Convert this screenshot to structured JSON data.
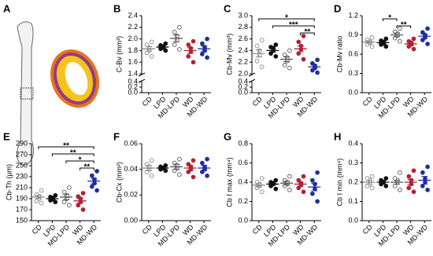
{
  "panel_a": {
    "label": "A"
  },
  "chart_data": [
    {
      "type": "dot",
      "panel": "B",
      "ylabel": "C-Bv (mm³)",
      "ylim": [
        1.4,
        2.4
      ],
      "yticks": [
        1.4,
        1.6,
        1.8,
        {
          "value": 2,
          "label": "2.0"
        },
        2.2,
        2.4
      ],
      "ylim_low": [
        0,
        0.4
      ],
      "yticks_low": [
        {
          "value": 0,
          "label": "0.0"
        },
        0.2,
        0.4
      ],
      "series": [
        {
          "name": "CD",
          "color": "#888888",
          "filled": false,
          "values": [
            1.7,
            1.76,
            1.8,
            1.85,
            1.9,
            1.95
          ],
          "mean": 1.83,
          "sem": 0.04
        },
        {
          "name": "LPD",
          "color": "#111111",
          "filled": true,
          "values": [
            1.8,
            1.83,
            1.85,
            1.87,
            1.89,
            1.92
          ],
          "mean": 1.86,
          "sem": 0.02
        },
        {
          "name": "MD-LPD",
          "color": "#555555",
          "filled": false,
          "values": [
            1.82,
            1.9,
            1.98,
            2.05,
            2.12,
            2.2
          ],
          "mean": 2.01,
          "sem": 0.06
        },
        {
          "name": "WD",
          "color": "#b22234",
          "filled": true,
          "values": [
            1.6,
            1.7,
            1.78,
            1.84,
            1.9,
            1.96
          ],
          "mean": 1.8,
          "sem": 0.05
        },
        {
          "name": "MD-WD",
          "color": "#1f2f9e",
          "filled": true,
          "values": [
            1.68,
            1.74,
            1.8,
            1.86,
            1.92,
            2.0
          ],
          "mean": 1.83,
          "sem": 0.05
        }
      ],
      "brackets": []
    },
    {
      "type": "dot",
      "panel": "C",
      "ylabel": "Cb-Mv (mm³)",
      "ylim": [
        2.0,
        3.0
      ],
      "yticks": [
        {
          "value": 2,
          "label": "2.0"
        },
        2.2,
        2.4,
        2.6,
        2.8,
        {
          "value": 3,
          "label": "3.0"
        }
      ],
      "ylim_low": [
        0,
        0.4
      ],
      "yticks_low": [
        {
          "value": 0,
          "label": "0.0"
        },
        0.2,
        0.4
      ],
      "series": [
        {
          "name": "CD",
          "color": "#888888",
          "filled": false,
          "values": [
            2.12,
            2.22,
            2.32,
            2.4,
            2.48,
            2.58
          ],
          "mean": 2.35,
          "sem": 0.06
        },
        {
          "name": "LPD",
          "color": "#111111",
          "filled": true,
          "values": [
            2.3,
            2.35,
            2.4,
            2.44,
            2.46,
            2.5
          ],
          "mean": 2.4,
          "sem": 0.03
        },
        {
          "name": "MD-LPD",
          "color": "#555555",
          "filled": false,
          "values": [
            2.1,
            2.15,
            2.22,
            2.28,
            2.33,
            2.4
          ],
          "mean": 2.25,
          "sem": 0.04
        },
        {
          "name": "WD",
          "color": "#b22234",
          "filled": true,
          "values": [
            2.25,
            2.35,
            2.42,
            2.48,
            2.55,
            2.65
          ],
          "mean": 2.43,
          "sem": 0.05
        },
        {
          "name": "MD-WD",
          "color": "#1f2f9e",
          "filled": true,
          "values": [
            2.02,
            2.06,
            2.1,
            2.14,
            2.18,
            2.24
          ],
          "mean": 2.12,
          "sem": 0.03
        }
      ],
      "brackets": [
        {
          "label": "*",
          "from": "CD",
          "to": "MD-WD"
        },
        {
          "label": "***",
          "from": "LPD",
          "to": "MD-WD"
        },
        {
          "label": "**",
          "from": "WD",
          "to": "MD-WD"
        }
      ]
    },
    {
      "type": "dot",
      "panel": "D",
      "ylabel": "Cb-Mv ratio",
      "ylim": [
        0,
        1.2
      ],
      "yticks": [
        {
          "value": 0,
          "label": "0.0"
        },
        0.3,
        0.6,
        0.9,
        1.2
      ],
      "series": [
        {
          "name": "CD",
          "color": "#888888",
          "filled": false,
          "values": [
            0.72,
            0.75,
            0.78,
            0.8,
            0.83,
            0.86
          ],
          "mean": 0.79,
          "sem": 0.02
        },
        {
          "name": "LPD",
          "color": "#111111",
          "filled": true,
          "values": [
            0.72,
            0.75,
            0.77,
            0.79,
            0.81,
            0.84
          ],
          "mean": 0.78,
          "sem": 0.02
        },
        {
          "name": "MD-LPD",
          "color": "#555555",
          "filled": false,
          "values": [
            0.8,
            0.85,
            0.89,
            0.92,
            0.95,
            1.0
          ],
          "mean": 0.9,
          "sem": 0.03
        },
        {
          "name": "WD",
          "color": "#b22234",
          "filled": true,
          "values": [
            0.68,
            0.72,
            0.75,
            0.78,
            0.8,
            0.84
          ],
          "mean": 0.76,
          "sem": 0.02
        },
        {
          "name": "MD-WD",
          "color": "#1f2f9e",
          "filled": true,
          "values": [
            0.76,
            0.82,
            0.86,
            0.9,
            0.94,
            1.0
          ],
          "mean": 0.88,
          "sem": 0.03
        }
      ],
      "brackets": [
        {
          "label": "*",
          "from": "LPD",
          "to": "MD-LPD"
        },
        {
          "label": "**",
          "from": "MD-LPD",
          "to": "WD"
        }
      ]
    },
    {
      "type": "dot",
      "panel": "E",
      "ylabel": "Cb-Th (μm)",
      "ylim": [
        150,
        290
      ],
      "yticks": [
        150,
        170,
        190,
        210,
        230,
        250,
        270,
        290
      ],
      "series": [
        {
          "name": "CD",
          "color": "#888888",
          "filled": false,
          "values": [
            182,
            186,
            190,
            195,
            198,
            205
          ],
          "mean": 193,
          "sem": 3
        },
        {
          "name": "LPD",
          "color": "#111111",
          "filled": true,
          "values": [
            184,
            187,
            189,
            191,
            193,
            196
          ],
          "mean": 190,
          "sem": 2
        },
        {
          "name": "MD-LPD",
          "color": "#555555",
          "filled": false,
          "values": [
            178,
            184,
            190,
            196,
            202,
            210
          ],
          "mean": 193,
          "sem": 5
        },
        {
          "name": "WD",
          "color": "#b22234",
          "filled": true,
          "values": [
            170,
            178,
            184,
            190,
            194,
            200
          ],
          "mean": 186,
          "sem": 4
        },
        {
          "name": "MD-WD",
          "color": "#1f2f9e",
          "filled": true,
          "values": [
            205,
            212,
            218,
            225,
            232,
            240
          ],
          "mean": 222,
          "sem": 5
        }
      ],
      "brackets": [
        {
          "label": "**",
          "from": "CD",
          "to": "MD-WD"
        },
        {
          "label": "**",
          "from": "LPD",
          "to": "MD-WD"
        },
        {
          "label": "*",
          "from": "MD-LPD",
          "to": "MD-WD"
        },
        {
          "label": "**",
          "from": "WD",
          "to": "MD-WD"
        }
      ]
    },
    {
      "type": "dot",
      "panel": "F",
      "ylabel": "Cb-Cx (mm²)",
      "ylim": [
        0,
        0.06
      ],
      "yticks": [
        {
          "value": 0,
          "label": "0.00"
        },
        0.02,
        0.04,
        0.06
      ],
      "series": [
        {
          "name": "CD",
          "color": "#888888",
          "filled": false,
          "values": [
            0.035,
            0.038,
            0.04,
            0.042,
            0.044,
            0.047
          ],
          "mean": 0.041,
          "sem": 0.002
        },
        {
          "name": "LPD",
          "color": "#111111",
          "filled": true,
          "values": [
            0.039,
            0.04,
            0.041,
            0.041,
            0.042,
            0.043
          ],
          "mean": 0.041,
          "sem": 0.001
        },
        {
          "name": "MD-LPD",
          "color": "#555555",
          "filled": false,
          "values": [
            0.036,
            0.039,
            0.041,
            0.043,
            0.045,
            0.048
          ],
          "mean": 0.042,
          "sem": 0.002
        },
        {
          "name": "WD",
          "color": "#b22234",
          "filled": true,
          "values": [
            0.034,
            0.038,
            0.04,
            0.042,
            0.044,
            0.047
          ],
          "mean": 0.041,
          "sem": 0.002
        },
        {
          "name": "MD-WD",
          "color": "#1f2f9e",
          "filled": true,
          "values": [
            0.035,
            0.038,
            0.04,
            0.042,
            0.045,
            0.048
          ],
          "mean": 0.041,
          "sem": 0.002
        }
      ],
      "brackets": []
    },
    {
      "type": "dot",
      "panel": "G",
      "ylabel": "Cb I max (mm⁴)",
      "ylim": [
        0,
        0.8
      ],
      "yticks": [
        {
          "value": 0,
          "label": "0.0"
        },
        0.2,
        0.4,
        0.6,
        0.8
      ],
      "series": [
        {
          "name": "CD",
          "color": "#888888",
          "filled": false,
          "values": [
            0.3,
            0.34,
            0.36,
            0.38,
            0.4,
            0.44
          ],
          "mean": 0.37,
          "sem": 0.02
        },
        {
          "name": "LPD",
          "color": "#111111",
          "filled": true,
          "values": [
            0.33,
            0.36,
            0.38,
            0.39,
            0.4,
            0.42
          ],
          "mean": 0.38,
          "sem": 0.01
        },
        {
          "name": "MD-LPD",
          "color": "#555555",
          "filled": false,
          "values": [
            0.32,
            0.36,
            0.38,
            0.4,
            0.42,
            0.46
          ],
          "mean": 0.39,
          "sem": 0.02
        },
        {
          "name": "WD",
          "color": "#b22234",
          "filled": true,
          "values": [
            0.3,
            0.34,
            0.37,
            0.39,
            0.42,
            0.46
          ],
          "mean": 0.38,
          "sem": 0.02
        },
        {
          "name": "MD-WD",
          "color": "#1f2f9e",
          "filled": true,
          "values": [
            0.2,
            0.28,
            0.33,
            0.38,
            0.42,
            0.5
          ],
          "mean": 0.35,
          "sem": 0.04
        }
      ],
      "brackets": []
    },
    {
      "type": "dot",
      "panel": "H",
      "ylabel": "Cb I min (mm⁴)",
      "ylim": [
        0,
        0.4
      ],
      "yticks": [
        {
          "value": 0,
          "label": "0.0"
        },
        0.1,
        0.2,
        0.3,
        0.4
      ],
      "series": [
        {
          "name": "CD",
          "color": "#888888",
          "filled": false,
          "values": [
            0.17,
            0.18,
            0.19,
            0.21,
            0.22,
            0.23
          ],
          "mean": 0.2,
          "sem": 0.01
        },
        {
          "name": "LPD",
          "color": "#111111",
          "filled": true,
          "values": [
            0.18,
            0.19,
            0.2,
            0.2,
            0.21,
            0.22
          ],
          "mean": 0.2,
          "sem": 0.01
        },
        {
          "name": "MD-LPD",
          "color": "#555555",
          "filled": false,
          "values": [
            0.16,
            0.18,
            0.2,
            0.21,
            0.22,
            0.25
          ],
          "mean": 0.2,
          "sem": 0.01
        },
        {
          "name": "WD",
          "color": "#b22234",
          "filled": true,
          "values": [
            0.15,
            0.17,
            0.19,
            0.21,
            0.23,
            0.26
          ],
          "mean": 0.2,
          "sem": 0.015
        },
        {
          "name": "MD-WD",
          "color": "#1f2f9e",
          "filled": true,
          "values": [
            0.16,
            0.18,
            0.2,
            0.22,
            0.25,
            0.28
          ],
          "mean": 0.21,
          "sem": 0.02
        }
      ],
      "brackets": []
    }
  ]
}
